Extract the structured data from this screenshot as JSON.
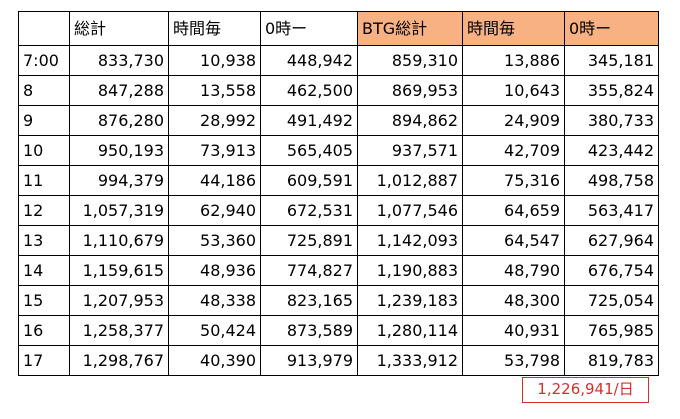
{
  "table": {
    "headers": [
      "",
      "総計",
      "時間毎",
      "0時ー",
      "BTG総計",
      "時間毎",
      "0時ー"
    ],
    "highlight_color": "#f7b183",
    "rows": [
      [
        "7:00",
        "833,730",
        "10,938",
        "448,942",
        "859,310",
        "13,886",
        "345,181"
      ],
      [
        "8",
        "847,288",
        "13,558",
        "462,500",
        "869,953",
        "10,643",
        "355,824"
      ],
      [
        "9",
        "876,280",
        "28,992",
        "491,492",
        "894,862",
        "24,909",
        "380,733"
      ],
      [
        "10",
        "950,193",
        "73,913",
        "565,405",
        "937,571",
        "42,709",
        "423,442"
      ],
      [
        "11",
        "994,379",
        "44,186",
        "609,591",
        "1,012,887",
        "75,316",
        "498,758"
      ],
      [
        "12",
        "1,057,319",
        "62,940",
        "672,531",
        "1,077,546",
        "64,659",
        "563,417"
      ],
      [
        "13",
        "1,110,679",
        "53,360",
        "725,891",
        "1,142,093",
        "64,547",
        "627,964"
      ],
      [
        "14",
        "1,159,615",
        "48,936",
        "774,827",
        "1,190,883",
        "48,790",
        "676,754"
      ],
      [
        "15",
        "1,207,953",
        "48,338",
        "823,165",
        "1,239,183",
        "48,300",
        "725,054"
      ],
      [
        "16",
        "1,258,377",
        "50,424",
        "873,589",
        "1,280,114",
        "40,931",
        "765,985"
      ],
      [
        "17",
        "1,298,767",
        "40,390",
        "913,979",
        "1,333,912",
        "53,798",
        "819,783"
      ]
    ]
  },
  "daily_note": {
    "text": "1,226,941/日",
    "color": "#d32f2f"
  }
}
